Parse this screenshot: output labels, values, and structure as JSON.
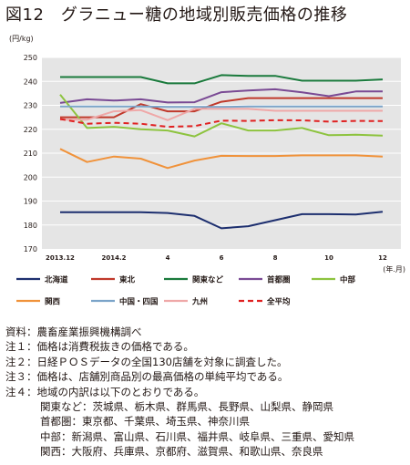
{
  "title": "図12　グラニュー糖の地域別販売価格の推移",
  "chart_data": {
    "type": "line",
    "ylabel": "(円/kg)",
    "xlabel": "(年.月)",
    "ylim": [
      170,
      250
    ],
    "yticks": [
      170,
      180,
      190,
      200,
      210,
      220,
      230,
      240,
      250
    ],
    "x": [
      "2013.12",
      "2014.1",
      "2014.2",
      "2014.3",
      "2014.4",
      "2014.5",
      "2014.6",
      "2014.7",
      "2014.8",
      "2014.9",
      "2014.10",
      "2014.11",
      "2014.12"
    ],
    "xtick_labels": [
      "2013.12",
      "",
      "2014.2",
      "",
      "4",
      "",
      "6",
      "",
      "8",
      "",
      "10",
      "",
      "12"
    ],
    "grid": "horizontal",
    "legend_position": "bottom",
    "series": [
      {
        "name": "北海道",
        "color": "#1d2f6f",
        "dash": false,
        "values": [
          185.3,
          185.3,
          185.3,
          185.3,
          185.0,
          183.8,
          178.6,
          179.5,
          182.0,
          184.5,
          184.5,
          184.4,
          185.5
        ]
      },
      {
        "name": "東北",
        "color": "#c0392b",
        "dash": false,
        "values": [
          225.0,
          225.0,
          225.0,
          230.5,
          227.5,
          227.5,
          231.5,
          233.0,
          233.0,
          233.0,
          233.0,
          233.0,
          233.0
        ]
      },
      {
        "name": "関東など",
        "color": "#1a7a3c",
        "dash": false,
        "values": [
          241.8,
          241.8,
          241.8,
          241.8,
          239.2,
          239.2,
          242.6,
          242.3,
          242.3,
          240.3,
          240.3,
          240.3,
          240.8
        ]
      },
      {
        "name": "首都圏",
        "color": "#7a4a94",
        "dash": false,
        "values": [
          231.0,
          232.5,
          232.0,
          232.5,
          231.2,
          231.3,
          235.5,
          236.2,
          236.7,
          235.4,
          233.8,
          235.8,
          235.8
        ]
      },
      {
        "name": "中部",
        "color": "#8dc33f",
        "dash": false,
        "values": [
          234.5,
          220.5,
          221.0,
          220.0,
          219.5,
          217.0,
          222.5,
          219.5,
          219.5,
          220.5,
          217.5,
          217.7,
          217.3
        ]
      },
      {
        "name": "関西",
        "color": "#f0923a",
        "dash": false,
        "values": [
          211.8,
          206.3,
          208.6,
          207.7,
          203.8,
          206.9,
          208.9,
          208.8,
          208.8,
          209.1,
          209.1,
          209.1,
          208.6
        ]
      },
      {
        "name": "中国・四国",
        "color": "#7ba4c9",
        "dash": false,
        "values": [
          229.5,
          229.5,
          229.5,
          229.5,
          229.3,
          229.3,
          229.3,
          229.5,
          229.5,
          229.5,
          229.5,
          229.5,
          229.5
        ]
      },
      {
        "name": "九州",
        "color": "#efa8a8",
        "dash": false,
        "values": [
          224.0,
          224.0,
          227.5,
          228.0,
          223.8,
          228.5,
          228.5,
          228.5,
          227.7,
          227.7,
          227.7,
          227.7,
          227.7
        ]
      },
      {
        "name": "全平均",
        "color": "#e02020",
        "dash": true,
        "values": [
          224.3,
          222.3,
          222.7,
          222.3,
          221.0,
          221.3,
          223.6,
          223.5,
          223.8,
          223.7,
          223.2,
          223.5,
          223.4
        ]
      }
    ]
  },
  "notes": [
    "資料：農畜産業振興機構調べ",
    "注１：価格は消費税抜きの価格である。",
    "注２：日経ＰＯＳデータの全国130店舗を対象に調査した。",
    "注３：価格は、店舗別商品別の最高価格の単純平均である。",
    "注４：地域の内訳は以下のとおりである。"
  ],
  "region_notes": [
    "関東など：茨城県、栃木県、群馬県、長野県、山梨県、静岡県",
    "首都圏：東京都、千葉県、埼玉県、神奈川県",
    "中部：新潟県、富山県、石川県、福井県、岐阜県、三重県、愛知県",
    "関西：大阪府、兵庫県、京都府、滋賀県、和歌山県、奈良県"
  ]
}
